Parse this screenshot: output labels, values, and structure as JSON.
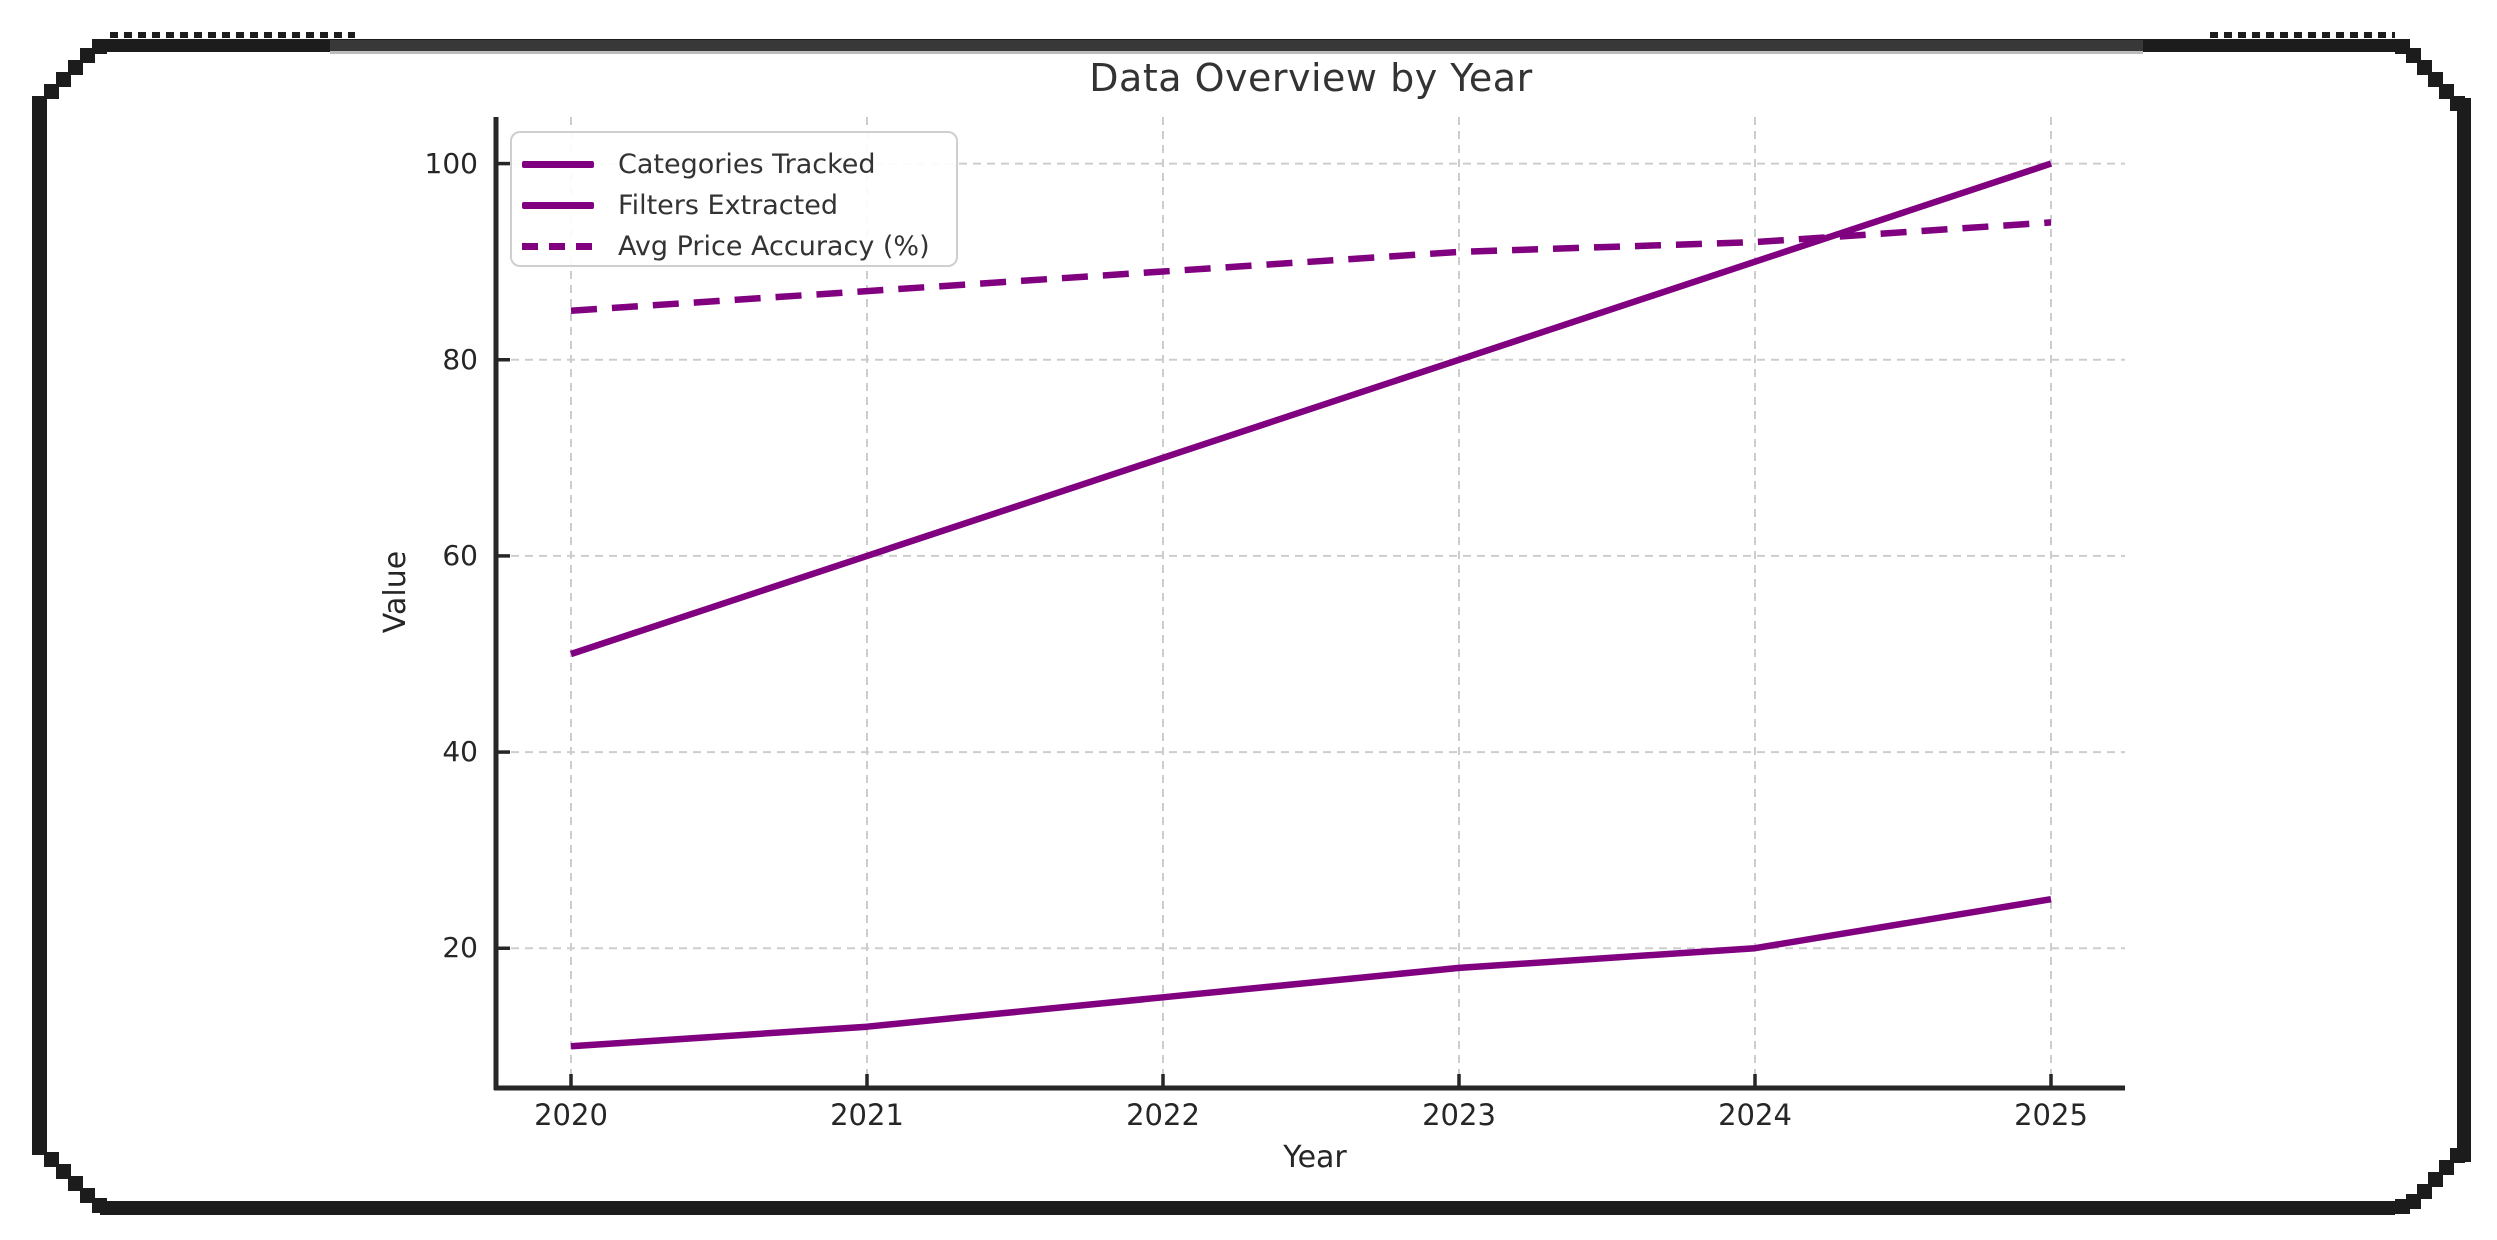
{
  "window": {
    "frame_border_color": "#1c1c1c",
    "top_bar_color": "#383838",
    "background_color": "#ffffff"
  },
  "chart_data": {
    "type": "line",
    "title": "Data Overview by Year",
    "xlabel": "Year",
    "ylabel": "Value",
    "x": [
      2020,
      2021,
      2022,
      2023,
      2024,
      2025
    ],
    "x_tick_labels": [
      "2020",
      "2021",
      "2022",
      "2023",
      "2024",
      "2025"
    ],
    "y_ticks": [
      20,
      40,
      60,
      80,
      100
    ],
    "y_tick_labels": [
      "20",
      "40",
      "60",
      "80",
      "100"
    ],
    "xlim": [
      2019.75,
      2025.25
    ],
    "ylim": [
      5.75,
      104.75
    ],
    "grid": "dashed-both-axes",
    "grid_color": "#cdcdcd",
    "axis_color": "#262626",
    "legend_position": "upper-left",
    "line_color": "#800080",
    "series": [
      {
        "name": "Categories Tracked",
        "style": "solid",
        "values": [
          50,
          60,
          70,
          80,
          90,
          100
        ]
      },
      {
        "name": "Filters Extracted",
        "style": "solid",
        "values": [
          10,
          12,
          15,
          18,
          20,
          25
        ]
      },
      {
        "name": "Avg Price Accuracy (%)",
        "style": "dashed",
        "values": [
          85,
          87,
          89,
          91,
          92,
          94
        ]
      }
    ]
  }
}
